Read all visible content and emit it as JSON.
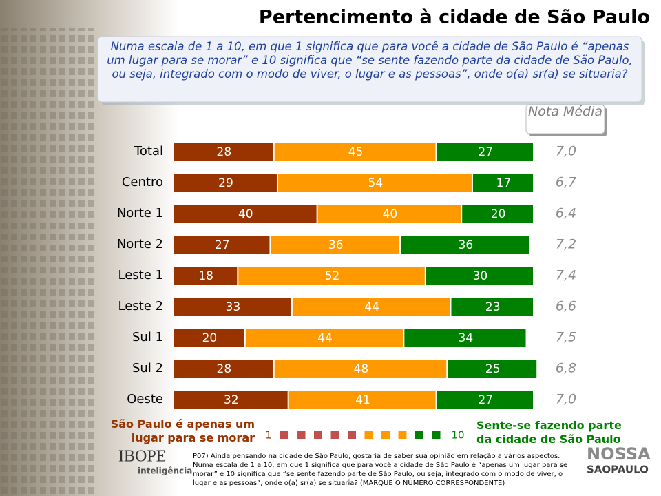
{
  "chart_data": {
    "type": "bar",
    "orientation": "horizontal",
    "stacked": true,
    "title": "Pertencimento à cidade de São Paulo",
    "subtitle": "Numa escala de 1 a 10, em que 1 significa que para você a cidade de São Paulo é “apenas um lugar para se morar” e 10 significa que “se sente fazendo parte da cidade de São Paulo, ou seja, integrado com o modo de viver, o lugar e as pessoas”, onde o(a) sr(a) se situaria?",
    "categories": [
      "Total",
      "Centro",
      "Norte 1",
      "Norte 2",
      "Leste 1",
      "Leste 2",
      "Sul 1",
      "Sul 2",
      "Oeste"
    ],
    "xlim": [
      0,
      100
    ],
    "series": [
      {
        "color": "#993300",
        "values": [
          28,
          29,
          40,
          27,
          18,
          33,
          20,
          28,
          32
        ]
      },
      {
        "color": "#ff9900",
        "values": [
          45,
          54,
          40,
          36,
          52,
          44,
          44,
          48,
          41
        ]
      },
      {
        "color": "#008000",
        "values": [
          27,
          17,
          20,
          36,
          30,
          23,
          34,
          25,
          27
        ]
      }
    ],
    "nota_media": {
      "title": "Nota Média",
      "values": [
        7.0,
        6.7,
        6.4,
        7.2,
        7.4,
        6.6,
        7.5,
        6.8,
        7.0
      ],
      "value_labels": [
        "7,0",
        "6,7",
        "6,4",
        "7,2",
        "7,4",
        "6,6",
        "7,5",
        "6,8",
        "7,0"
      ]
    },
    "legend": {
      "low_text": "São Paulo é apenas um lugar para se morar",
      "high_text": "Sente-se fazendo parte da cidade de São Paulo",
      "low_label": "1",
      "high_label": "10",
      "scale_colors": [
        "#c0504d",
        "#c0504d",
        "#c0504d",
        "#c0504d",
        "#c0504d",
        "#ff9900",
        "#ff9900",
        "#ff9900",
        "#008000",
        "#008000"
      ]
    },
    "footnote": "P07) Ainda pensando na cidade de São Paulo, gostaria de saber sua opinião em relação a vários aspectos. Numa escala de 1 a 10, em que 1 significa que para você a cidade de São Paulo é “apenas um lugar para se morar” e 10 significa que “se sente fazendo parte de São Paulo, ou seja, integrado com o modo de viver, o lugar e as pessoas”, onde o(a) sr(a) se situaria? (MARQUE O NÚMERO CORRESPONDENTE)",
    "logos": {
      "ibope": "IBOPE",
      "ibope_sub": "inteligência",
      "nossa": "NOSSA",
      "saopaulo": "SAOPAULO"
    }
  }
}
